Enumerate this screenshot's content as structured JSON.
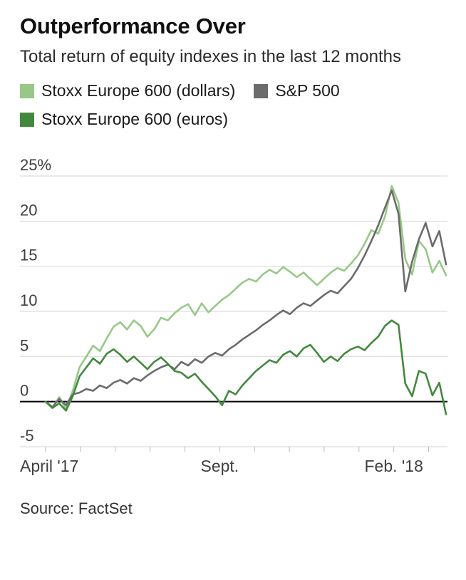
{
  "header": {
    "title": "Outperformance Over",
    "subtitle": "Total return of equity indexes in the last 12 months"
  },
  "legend": [
    {
      "label": "Stoxx Europe 600 (dollars)",
      "color": "#98c887"
    },
    {
      "label": "S&P 500",
      "color": "#6b6b6b"
    },
    {
      "label": "Stoxx Europe 600 (euros)",
      "color": "#43883f"
    }
  ],
  "source": "Source: FactSet",
  "chart_data": {
    "type": "line",
    "title": "Outperformance Over",
    "subtitle": "Total return of equity indexes in the last 12 months",
    "unit": "%",
    "ylim": [
      -5,
      25
    ],
    "yticks": [
      25,
      20,
      15,
      10,
      5,
      0,
      -5
    ],
    "ytick_labels": [
      "25%",
      "20",
      "15",
      "10",
      "5",
      "0",
      "-5"
    ],
    "grid": true,
    "zero_line": true,
    "legend_position": "top-left",
    "x_axis": {
      "tick_count": 12,
      "tick_labels": [
        {
          "index": 0,
          "text": "April '17",
          "align": "start"
        },
        {
          "index": 5,
          "text": "Sept.",
          "align": "middle"
        },
        {
          "index": 10,
          "text": "Feb. '18",
          "align": "middle"
        }
      ]
    },
    "series": [
      {
        "name": "Stoxx Europe 600 (dollars)",
        "color": "#98c887",
        "values": [
          0,
          -0.7,
          0.5,
          -0.8,
          1.2,
          3.8,
          5.0,
          6.2,
          5.6,
          7.0,
          8.3,
          8.8,
          8.0,
          9.0,
          8.4,
          7.2,
          8.0,
          9.3,
          9.0,
          9.8,
          10.4,
          10.8,
          9.6,
          10.9,
          9.9,
          10.6,
          11.3,
          11.8,
          12.5,
          13.2,
          13.6,
          13.3,
          14.1,
          14.6,
          14.2,
          14.9,
          14.4,
          13.8,
          14.3,
          13.6,
          12.9,
          13.6,
          14.3,
          14.8,
          14.5,
          15.3,
          16.2,
          17.5,
          19.0,
          18.6,
          20.5,
          23.9,
          22.0,
          15.8,
          14.1,
          17.8,
          16.9,
          14.3,
          15.6,
          14.0
        ]
      },
      {
        "name": "S&P 500",
        "color": "#6b6b6b",
        "values": [
          0,
          -0.6,
          0.3,
          -0.4,
          0.8,
          1.0,
          1.4,
          1.2,
          1.8,
          1.5,
          2.1,
          2.4,
          2.0,
          2.6,
          2.3,
          2.9,
          3.4,
          3.8,
          4.1,
          3.6,
          4.4,
          4.0,
          4.7,
          4.3,
          5.0,
          5.4,
          5.1,
          5.8,
          6.3,
          6.9,
          7.4,
          7.9,
          8.5,
          9.0,
          9.6,
          10.1,
          9.7,
          10.4,
          10.9,
          10.6,
          11.2,
          11.8,
          12.3,
          12.0,
          12.8,
          13.6,
          14.8,
          16.2,
          17.8,
          19.5,
          21.5,
          23.4,
          20.8,
          12.2,
          15.5,
          18.0,
          19.8,
          17.2,
          18.9,
          15.2
        ]
      },
      {
        "name": "Stoxx Europe 600 (euros)",
        "color": "#43883f",
        "values": [
          0,
          -0.7,
          -0.2,
          -1.0,
          0.6,
          2.8,
          3.8,
          4.8,
          4.2,
          5.3,
          5.8,
          5.2,
          4.4,
          5.0,
          4.3,
          3.6,
          4.4,
          4.9,
          4.2,
          3.4,
          3.2,
          2.6,
          3.1,
          2.2,
          1.4,
          0.6,
          -0.4,
          1.2,
          0.8,
          1.8,
          2.6,
          3.4,
          4.0,
          4.6,
          4.3,
          5.2,
          5.6,
          5.0,
          5.9,
          6.3,
          5.4,
          4.4,
          5.0,
          4.5,
          5.3,
          5.8,
          6.1,
          5.7,
          6.5,
          7.2,
          8.4,
          9.0,
          8.5,
          2.0,
          0.6,
          3.4,
          3.1,
          0.7,
          2.1,
          -1.4
        ]
      }
    ]
  }
}
